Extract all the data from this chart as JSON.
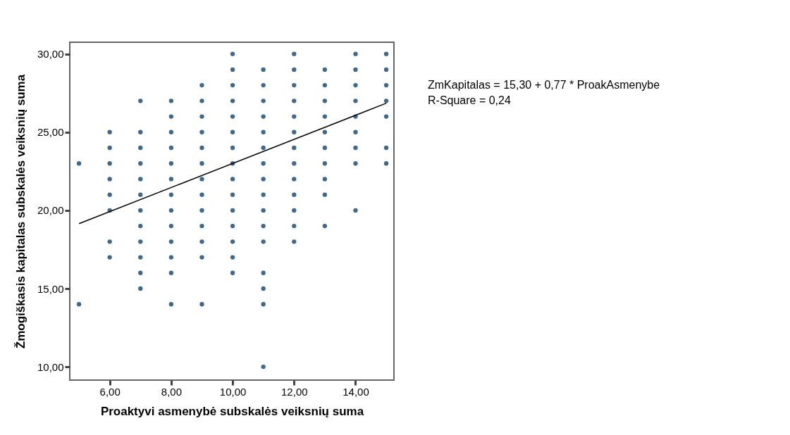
{
  "chart_data": {
    "type": "scatter",
    "xlabel": "Proaktyvi asmenybė subskalės veiksnių suma",
    "ylabel": "Žmogiškasis kapitalas subskalės veiksnių suma",
    "xlim": [
      4.7,
      15.25
    ],
    "ylim": [
      9.15,
      30.75
    ],
    "xticks": [
      {
        "value": 6,
        "label": "6,00"
      },
      {
        "value": 8,
        "label": "8,00"
      },
      {
        "value": 10,
        "label": "10,00"
      },
      {
        "value": 12,
        "label": "12,00"
      },
      {
        "value": 14,
        "label": "14,00"
      }
    ],
    "yticks": [
      {
        "value": 10,
        "label": "10,00"
      },
      {
        "value": 15,
        "label": "15,00"
      },
      {
        "value": 20,
        "label": "20,00"
      },
      {
        "value": 25,
        "label": "25,00"
      },
      {
        "value": 30,
        "label": "30,00"
      }
    ],
    "grid": false,
    "annotations": [
      "ZmKapitalas = 15,30 + 0,77 * ProakAsmenybe",
      "R-Square = 0,24"
    ],
    "series": [
      {
        "marker": "circle",
        "color": "#1f4e79",
        "x": [
          5,
          5,
          6,
          6,
          6,
          6,
          6,
          6,
          6,
          6,
          7,
          7,
          7,
          7,
          7,
          7,
          7,
          7,
          7,
          7,
          7,
          7,
          8,
          8,
          8,
          8,
          8,
          8,
          8,
          8,
          8,
          8,
          8,
          8,
          8,
          9,
          9,
          9,
          9,
          9,
          9,
          9,
          9,
          9,
          9,
          9,
          9,
          9,
          10,
          10,
          10,
          10,
          10,
          10,
          10,
          10,
          10,
          10,
          10,
          10,
          10,
          10,
          10,
          11,
          11,
          11,
          11,
          11,
          11,
          11,
          11,
          11,
          11,
          11,
          11,
          11,
          11,
          11,
          11,
          12,
          12,
          12,
          12,
          12,
          12,
          12,
          12,
          12,
          12,
          12,
          12,
          12,
          13,
          13,
          13,
          13,
          13,
          13,
          13,
          13,
          13,
          13,
          14,
          14,
          14,
          14,
          14,
          14,
          14,
          14,
          14,
          15,
          15,
          15,
          15,
          15,
          15,
          15
        ],
        "values": [
          23,
          14,
          25,
          24,
          23,
          22,
          21,
          20,
          18,
          17,
          27,
          25,
          24,
          23,
          22,
          21,
          20,
          19,
          18,
          17,
          16,
          15,
          27,
          26,
          25,
          24,
          23,
          22,
          21,
          20,
          19,
          18,
          17,
          16,
          14,
          28,
          27,
          26,
          25,
          24,
          23,
          22,
          21,
          20,
          19,
          18,
          17,
          14,
          30,
          29,
          28,
          27,
          26,
          25,
          24,
          23,
          22,
          21,
          20,
          19,
          18,
          17,
          16,
          29,
          28,
          27,
          26,
          25,
          24,
          23,
          22,
          21,
          20,
          19,
          18,
          16,
          15,
          14,
          10,
          30,
          29,
          28,
          27,
          26,
          25,
          24,
          23,
          22,
          21,
          20,
          19,
          18,
          29,
          28,
          27,
          26,
          25,
          24,
          23,
          22,
          21,
          19,
          30,
          29,
          28,
          27,
          26,
          25,
          24,
          23,
          20,
          30,
          29,
          28,
          27,
          26,
          24,
          23
        ]
      },
      {
        "type": "line",
        "color": "#000000",
        "x": [
          5,
          15
        ],
        "values": [
          19.15,
          26.85
        ]
      }
    ]
  }
}
